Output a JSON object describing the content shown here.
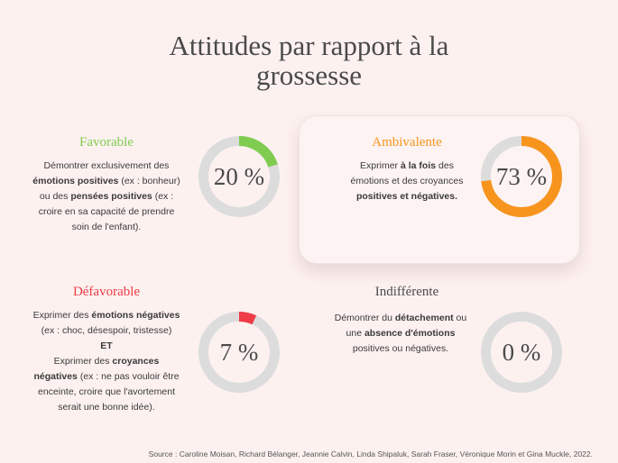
{
  "title_line1": "Attitudes par rapport à la",
  "title_line2": "grossesse",
  "colors": {
    "favorable": "#80cc50",
    "ambivalente": "#f7941d",
    "defavorable": "#ee3b46",
    "indifferente": "#4a4a4a",
    "track": "#dcdcdc"
  },
  "chart_data": {
    "type": "pie",
    "title": "Attitudes par rapport à la grossesse",
    "categories": [
      "Favorable",
      "Ambivalente",
      "Défavorable",
      "Indifférente"
    ],
    "values": [
      20,
      73,
      7,
      0
    ],
    "unit": "%"
  },
  "cards": {
    "favorable": {
      "label": "Favorable",
      "value": 20,
      "pct_label": "20 %",
      "desc": [
        [
          {
            "t": "Démontrer exclusivement des"
          }
        ],
        [
          {
            "t": "émotions positives",
            "b": true
          },
          {
            "t": " (ex : bonheur)"
          }
        ],
        [
          {
            "t": "ou des "
          },
          {
            "t": "pensées positives",
            "b": true
          },
          {
            "t": " (ex :"
          }
        ],
        [
          {
            "t": "croire en sa capacité de prendre"
          }
        ],
        [
          {
            "t": "soin de l'enfant)."
          }
        ]
      ]
    },
    "ambivalente": {
      "label": "Ambivalente",
      "value": 73,
      "pct_label": "73 %",
      "desc": [
        [
          {
            "t": "Exprimer "
          },
          {
            "t": "à la fois",
            "b": true
          },
          {
            "t": " des"
          }
        ],
        [
          {
            "t": "émotions et des croyances"
          }
        ],
        [
          {
            "t": "positives et négatives.",
            "b": true
          }
        ]
      ]
    },
    "defavorable": {
      "label": "Défavorable",
      "value": 7,
      "pct_label": "7 %",
      "desc": [
        [
          {
            "t": "Exprimer des "
          },
          {
            "t": "émotions négatives",
            "b": true
          }
        ],
        [
          {
            "t": "(ex : choc, désespoir, tristesse)"
          }
        ],
        [
          {
            "t": "ET",
            "b": true
          }
        ],
        [
          {
            "t": "Exprimer des "
          },
          {
            "t": "croyances",
            "b": true
          }
        ],
        [
          {
            "t": "négatives",
            "b": true
          },
          {
            "t": " (ex : ne pas vouloir être"
          }
        ],
        [
          {
            "t": "enceinte, croire que l'avortement"
          }
        ],
        [
          {
            "t": "serait une bonne idée)."
          }
        ]
      ]
    },
    "indifferente": {
      "label": "Indifférente",
      "value": 0,
      "pct_label": "0 %",
      "desc": [
        [
          {
            "t": "Démontrer du "
          },
          {
            "t": "détachement",
            "b": true
          },
          {
            "t": " ou"
          }
        ],
        [
          {
            "t": "une "
          },
          {
            "t": "absence d'émotions",
            "b": true
          }
        ],
        [
          {
            "t": "positives ou négatives."
          }
        ]
      ]
    }
  },
  "source": "Source : Caroline Moisan, Richard Bélanger, Jeannie Calvin, Linda Shipaluk, Sarah Fraser, Véronique Morin et Gina Muckle, 2022."
}
